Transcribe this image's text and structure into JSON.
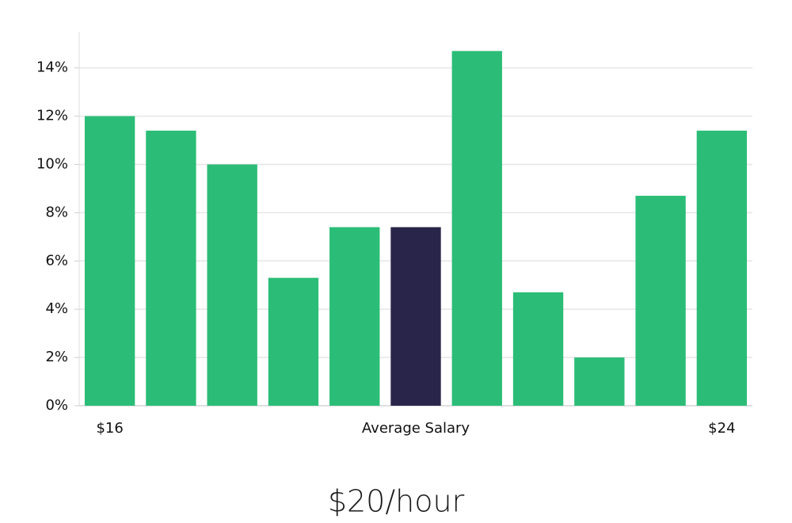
{
  "chart_data": {
    "type": "bar",
    "categories": [
      "$16",
      null,
      null,
      null,
      null,
      "Average Salary",
      null,
      null,
      null,
      null,
      "$24"
    ],
    "values": [
      12.0,
      11.4,
      10.0,
      5.3,
      7.4,
      7.4,
      14.7,
      4.7,
      2.0,
      8.7,
      11.4
    ],
    "colors": [
      "#2bbd77",
      "#2bbd77",
      "#2bbd77",
      "#2bbd77",
      "#2bbd77",
      "#29254a",
      "#2bbd77",
      "#2bbd77",
      "#2bbd77",
      "#2bbd77",
      "#2bbd77"
    ],
    "ylim": [
      0,
      15.5
    ],
    "yticks": [
      {
        "value": 0,
        "label": "0%"
      },
      {
        "value": 2,
        "label": "2%"
      },
      {
        "value": 4,
        "label": "4%"
      },
      {
        "value": 6,
        "label": "6%"
      },
      {
        "value": 8,
        "label": "8%"
      },
      {
        "value": 10,
        "label": "10%"
      },
      {
        "value": 12,
        "label": "12%"
      },
      {
        "value": 14,
        "label": "14%"
      }
    ],
    "grid": true,
    "subtitle": "$20/hour"
  }
}
